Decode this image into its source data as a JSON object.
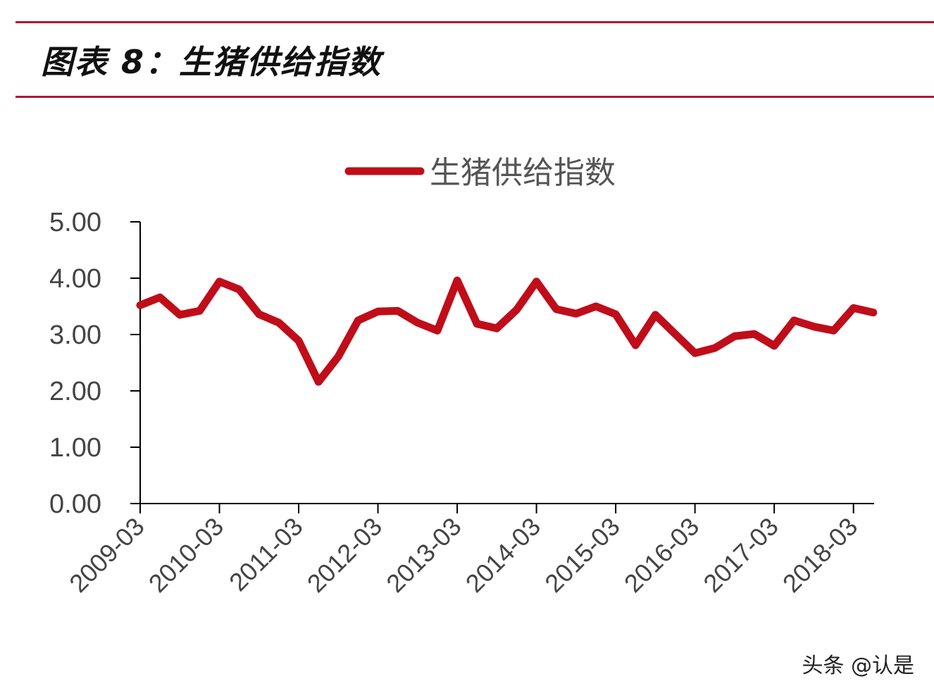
{
  "header": {
    "title": "图表 8：生猪供给指数"
  },
  "watermark": "头条 @认是",
  "chart_data": {
    "type": "line",
    "title": "",
    "xlabel": "",
    "ylabel": "",
    "ylim": [
      0,
      5
    ],
    "yticks": [
      "0.00",
      "1.00",
      "2.00",
      "3.00",
      "4.00",
      "5.00"
    ],
    "xtick_labels": [
      "2009-03",
      "2010-03",
      "2011-03",
      "2012-03",
      "2013-03",
      "2014-03",
      "2015-03",
      "2016-03",
      "2017-03",
      "2018-03"
    ],
    "grid": false,
    "legend_position": "top-center",
    "series": [
      {
        "name": "生猪供给指数",
        "color": "#c00d1a",
        "x": [
          "2009-03",
          "2009-06",
          "2009-09",
          "2009-12",
          "2010-03",
          "2010-06",
          "2010-09",
          "2010-12",
          "2011-03",
          "2011-06",
          "2011-09",
          "2011-12",
          "2012-03",
          "2012-06",
          "2012-09",
          "2012-12",
          "2013-03",
          "2013-06",
          "2013-09",
          "2013-12",
          "2014-03",
          "2014-06",
          "2014-09",
          "2014-12",
          "2015-03",
          "2015-06",
          "2015-09",
          "2015-12",
          "2016-03",
          "2016-06",
          "2016-09",
          "2016-12",
          "2017-03",
          "2017-06",
          "2017-09",
          "2017-12",
          "2018-03",
          "2018-06"
        ],
        "values": [
          3.52,
          3.66,
          3.35,
          3.42,
          3.94,
          3.8,
          3.36,
          3.21,
          2.89,
          2.16,
          2.61,
          3.25,
          3.41,
          3.42,
          3.21,
          3.07,
          3.96,
          3.19,
          3.11,
          3.44,
          3.94,
          3.45,
          3.37,
          3.5,
          3.36,
          2.81,
          3.35,
          3.01,
          2.67,
          2.76,
          2.97,
          3.01,
          2.8,
          3.25,
          3.14,
          3.07,
          3.47,
          3.39
        ]
      }
    ]
  }
}
